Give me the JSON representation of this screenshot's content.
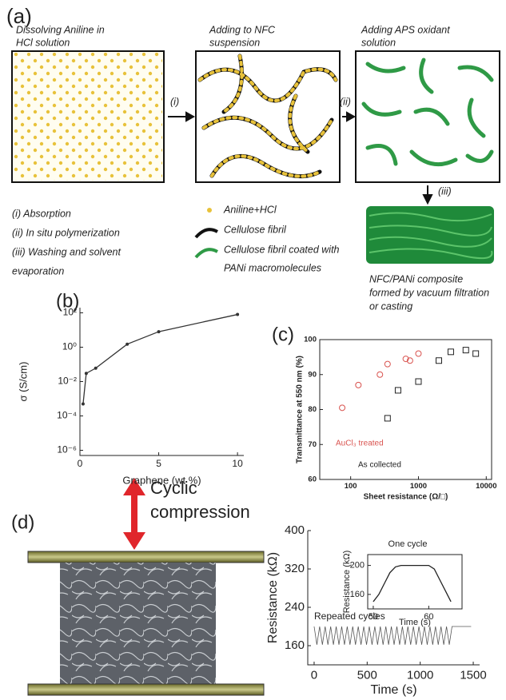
{
  "panel_a": {
    "label": "(a)",
    "steps": [
      [
        "Dissolving Aniline in",
        "HCl solution"
      ],
      [
        "Adding to NFC",
        "suspension"
      ],
      [
        "Adding APS oxidant",
        "solution"
      ]
    ],
    "arrows": [
      "(i)",
      "(ii)",
      "(iii)"
    ],
    "process": [
      "(i) Absorption",
      "(ii) In situ polymerization",
      "(iii) Washing and solvent",
      "evaporation"
    ],
    "legend": [
      "Aniline+HCl",
      "Cellulose fibril",
      "Cellulose fibril coated with",
      "PANi macromolecules"
    ],
    "product": [
      "NFC/PANi composite",
      "formed by vacuum filtration",
      "or casting"
    ]
  },
  "panel_d": {
    "label": "(d)",
    "caption": [
      "Cyclic",
      "compression"
    ]
  },
  "chart_data": [
    {
      "type": "line",
      "label": "(b)",
      "x": [
        0.2,
        0.4,
        1,
        3,
        5,
        10
      ],
      "values": [
        0.0005,
        0.03,
        0.06,
        1.5,
        8,
        80
      ],
      "color": "#333333",
      "markers": true,
      "xlim": [
        0,
        10.4
      ],
      "xticks": [
        0,
        5,
        10
      ],
      "ylim": [
        5e-07,
        200
      ],
      "ylog": true,
      "yticks": [
        {
          "value": 1e-06,
          "label": "10⁻⁶"
        },
        {
          "value": 0.0001,
          "label": "10⁻⁴"
        },
        {
          "value": 0.01,
          "label": "10⁻²"
        },
        {
          "value": 1,
          "label": "10⁰"
        },
        {
          "value": 100,
          "label": "10²"
        }
      ],
      "xlabel": "Graphene (wt %)",
      "ylabel": "σ (S/cm)"
    },
    {
      "type": "scatter",
      "label": "(c)",
      "xlog": true,
      "xlim": [
        35,
        12000
      ],
      "xticks": [
        100,
        1000,
        10000
      ],
      "ylim": [
        60,
        100
      ],
      "yticks": [
        60,
        70,
        80,
        90,
        100
      ],
      "xlabel": "Sheet resistance (Ω/□)",
      "ylabel": "Transmittance at 550 nm (%)",
      "series": [
        {
          "name": "AuCl₃ treated",
          "color": "#d9534f",
          "marker": "circle",
          "x": [
            75,
            130,
            270,
            350,
            650,
            750,
            1000
          ],
          "values": [
            80.5,
            87,
            90,
            93,
            94.5,
            94,
            96
          ]
        },
        {
          "name": "As collected",
          "color": "#222222",
          "marker": "square",
          "x": [
            350,
            500,
            1000,
            2000,
            3000,
            5000,
            7000
          ],
          "values": [
            77.5,
            85.5,
            88,
            94,
            96.5,
            97,
            96
          ]
        }
      ]
    },
    {
      "type": "line",
      "color": "#555555",
      "xlim": [
        -60,
        1560
      ],
      "xticks": [
        0,
        500,
        1000,
        1500
      ],
      "ylim": [
        120,
        400
      ],
      "yticks": [
        160,
        240,
        320,
        400
      ],
      "xlabel": "Time (s)",
      "ylabel": "Resistance (kΩ)",
      "annotation": "Repeated cycles",
      "x": [
        0,
        26,
        52,
        78,
        104,
        130,
        156,
        182,
        208,
        234,
        260,
        286,
        312,
        338,
        364,
        390,
        416,
        442,
        468,
        494,
        520,
        546,
        572,
        598,
        624,
        650,
        676,
        702,
        728,
        754,
        780,
        806,
        832,
        858,
        884,
        910,
        936,
        962,
        988,
        1014,
        1040,
        1066,
        1092,
        1118,
        1144,
        1170,
        1196,
        1222,
        1248,
        1274,
        1300,
        1480
      ],
      "values": [
        200,
        162,
        200,
        162,
        200,
        162,
        200,
        162,
        200,
        162,
        200,
        162,
        200,
        162,
        200,
        162,
        200,
        162,
        200,
        162,
        200,
        162,
        200,
        162,
        200,
        162,
        200,
        162,
        200,
        162,
        200,
        162,
        200,
        162,
        200,
        162,
        200,
        162,
        200,
        162,
        200,
        162,
        200,
        162,
        200,
        162,
        200,
        162,
        200,
        162,
        200,
        200
      ]
    },
    {
      "type": "line",
      "color": "#222222",
      "title": "One cycle",
      "xlim": [
        49,
        66
      ],
      "xticks": [
        50,
        60
      ],
      "ylim": [
        140,
        215
      ],
      "yticks": [
        160,
        200
      ],
      "xlabel": "Time (s)",
      "ylabel": "Resistance (kΩ)",
      "x": [
        50,
        51,
        52,
        53,
        54,
        55,
        58,
        60,
        61,
        62,
        63,
        64
      ],
      "values": [
        150,
        160,
        175,
        190,
        198,
        200,
        200,
        200,
        195,
        180,
        165,
        150
      ]
    }
  ]
}
